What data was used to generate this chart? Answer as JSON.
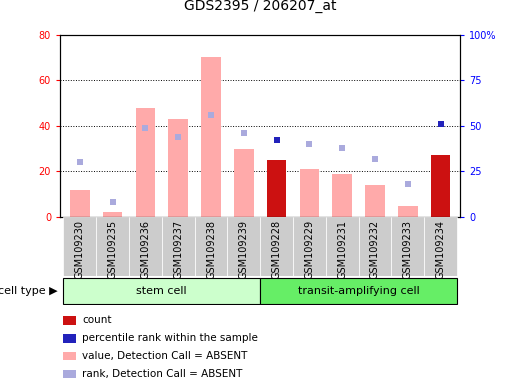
{
  "title": "GDS2395 / 206207_at",
  "samples": [
    "GSM109230",
    "GSM109235",
    "GSM109236",
    "GSM109237",
    "GSM109238",
    "GSM109239",
    "GSM109228",
    "GSM109229",
    "GSM109231",
    "GSM109232",
    "GSM109233",
    "GSM109234"
  ],
  "cell_types": [
    "stem cell",
    "stem cell",
    "stem cell",
    "stem cell",
    "stem cell",
    "stem cell",
    "transit-amplifying cell",
    "transit-amplifying cell",
    "transit-amplifying cell",
    "transit-amplifying cell",
    "transit-amplifying cell",
    "transit-amplifying cell"
  ],
  "bar_values": [
    12,
    2,
    48,
    43,
    70,
    30,
    25,
    21,
    19,
    14,
    5,
    27
  ],
  "bar_colors": [
    "#ffaaaa",
    "#ffaaaa",
    "#ffaaaa",
    "#ffaaaa",
    "#ffaaaa",
    "#ffaaaa",
    "#cc1111",
    "#ffaaaa",
    "#ffaaaa",
    "#ffaaaa",
    "#ffaaaa",
    "#cc1111"
  ],
  "scatter_rank": [
    30,
    8,
    49,
    44,
    56,
    46,
    42,
    40,
    38,
    32,
    18,
    51
  ],
  "scatter_colors": [
    "#aaaadd",
    "#aaaadd",
    "#aaaadd",
    "#aaaadd",
    "#aaaadd",
    "#aaaadd",
    "#2222bb",
    "#aaaadd",
    "#aaaadd",
    "#aaaadd",
    "#aaaadd",
    "#2222bb"
  ],
  "ylim_left": [
    0,
    80
  ],
  "ylim_right": [
    0,
    100
  ],
  "yticks_left": [
    0,
    20,
    40,
    60,
    80
  ],
  "yticks_right": [
    0,
    25,
    50,
    75,
    100
  ],
  "ytick_labels_right": [
    "0",
    "25",
    "50",
    "75",
    "100%"
  ],
  "grid_values": [
    20,
    40,
    60
  ],
  "stem_cell_label": "stem cell",
  "transit_cell_label": "transit-amplifying cell",
  "cell_type_label": "cell type",
  "legend_items": [
    {
      "label": "count",
      "color": "#cc1111"
    },
    {
      "label": "percentile rank within the sample",
      "color": "#2222bb"
    },
    {
      "label": "value, Detection Call = ABSENT",
      "color": "#ffaaaa"
    },
    {
      "label": "rank, Detection Call = ABSENT",
      "color": "#aaaadd"
    }
  ],
  "bg_stem": "#ccffcc",
  "bg_transit": "#66ee66",
  "bg_xtick": "#cccccc",
  "title_fontsize": 10,
  "tick_fontsize": 7,
  "label_fontsize": 8,
  "legend_fontsize": 7.5
}
